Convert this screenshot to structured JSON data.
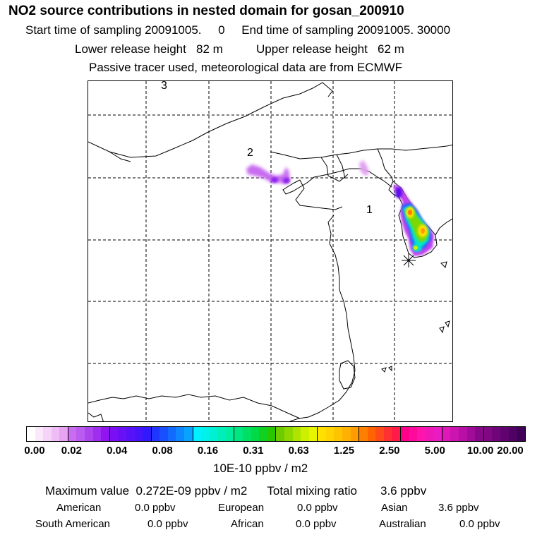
{
  "header": {
    "title": "NO2 source contributions in nested domain for gosan_200910",
    "start_label": "Start time of sampling",
    "start_value": "20091005.     0",
    "end_label": "End time of sampling",
    "end_value": "20091005. 30000",
    "lower_label": "Lower release height",
    "lower_value": "82 m",
    "upper_label": "Upper release height",
    "upper_value": "62 m",
    "note": "Passive tracer used, meteorological data are from ECMWF"
  },
  "map": {
    "labels": {
      "one": "1",
      "two": "2",
      "three": "3"
    },
    "receptor_icon": "asterisk-receptor-icon"
  },
  "colorbar": {
    "tick_labels": [
      "0.00",
      "0.02",
      "0.04",
      "0.08",
      "0.16",
      "0.31",
      "0.63",
      "1.25",
      "2.50",
      "5.00",
      "10.00",
      "20.00"
    ],
    "colors": [
      "#ffffff",
      "#fbe9fb",
      "#f6d3f9",
      "#efbdf5",
      "#e6a4f2",
      "#c86cf0",
      "#bb5bf0",
      "#ad45ef",
      "#a02ef0",
      "#9015f0",
      "#7a0ff3",
      "#6a10f6",
      "#5812f8",
      "#4514fb",
      "#3218fd",
      "#1f36ff",
      "#1850ff",
      "#126aff",
      "#0e86ff",
      "#0aa2ff",
      "#00f2ff",
      "#00f0ea",
      "#00f0d2",
      "#00efba",
      "#00eea2",
      "#00e782",
      "#00e064",
      "#00da44",
      "#10d020",
      "#28c800",
      "#6ccc00",
      "#8ed800",
      "#aee400",
      "#cdf000",
      "#e8f500",
      "#ffe000",
      "#ffd400",
      "#ffc400",
      "#ffb000",
      "#ff9c00",
      "#ff8000",
      "#ff6400",
      "#ff4a1a",
      "#ff3030",
      "#ff1a4a",
      "#ff0088",
      "#ff0a9c",
      "#ff14ac",
      "#ef18b6",
      "#e81cc0",
      "#e018b8",
      "#cc14b0",
      "#b810a6",
      "#a00c98",
      "#88088a",
      "#800882",
      "#70057a",
      "#600370",
      "#500164",
      "#400058"
    ],
    "units": "10E-10 ppbv / m2"
  },
  "summary": {
    "max_label": "Maximum value",
    "max_value": "0.272E-09 ppbv / m2",
    "total_label": "Total mixing ratio",
    "total_value": "3.6 ppbv",
    "regions": [
      {
        "name": "American",
        "value": "0.0 ppbv"
      },
      {
        "name": "European",
        "value": "0.0 ppbv"
      },
      {
        "name": "Asian",
        "value": "3.6 ppbv"
      },
      {
        "name": "South American",
        "value": "0.0 ppbv"
      },
      {
        "name": "African",
        "value": "0.0 ppbv"
      },
      {
        "name": "Australian",
        "value": "0.0 ppbv"
      }
    ]
  }
}
